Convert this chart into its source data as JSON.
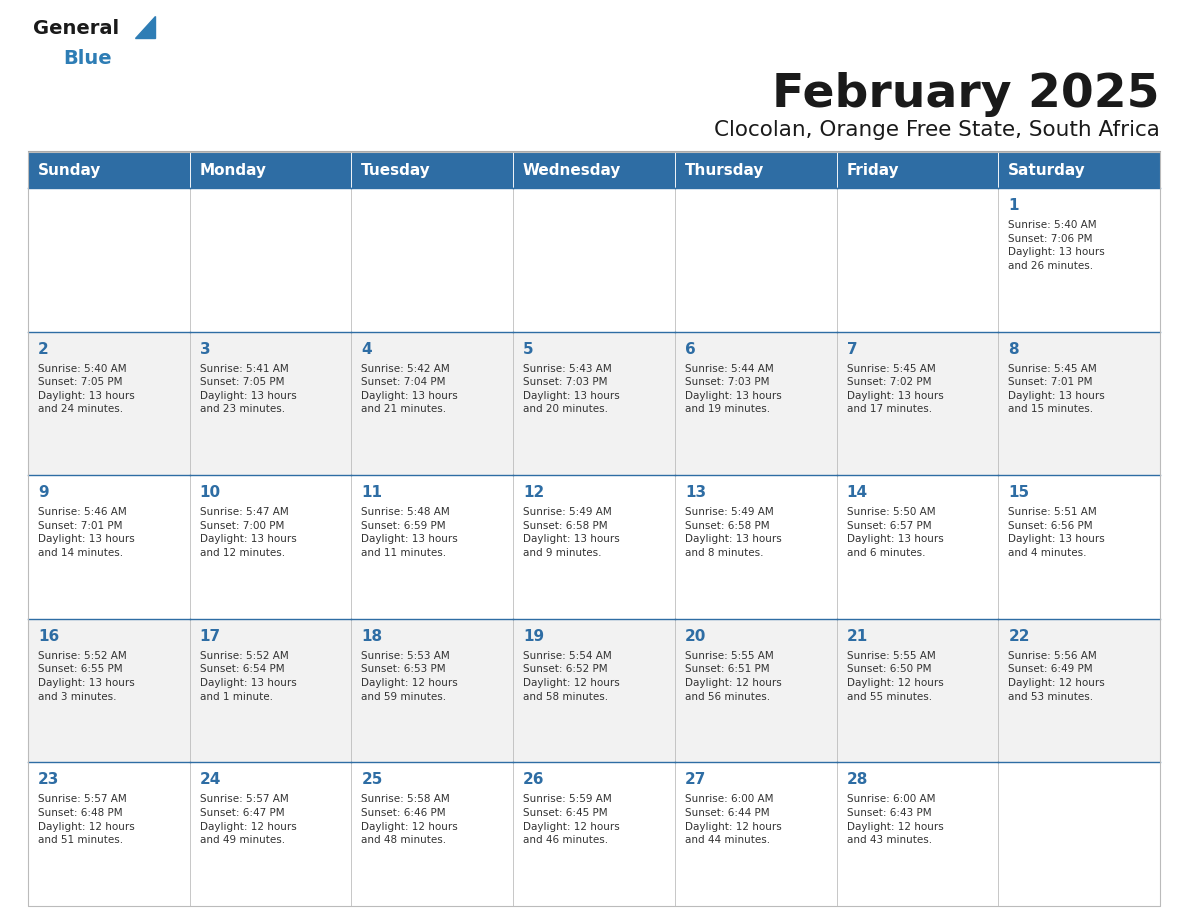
{
  "title": "February 2025",
  "subtitle": "Clocolan, Orange Free State, South Africa",
  "days_of_week": [
    "Sunday",
    "Monday",
    "Tuesday",
    "Wednesday",
    "Thursday",
    "Friday",
    "Saturday"
  ],
  "header_bg": "#2E6DA4",
  "header_text": "#FFFFFF",
  "cell_bg_white": "#FFFFFF",
  "cell_bg_gray": "#F2F2F2",
  "cell_border": "#BBBBBB",
  "day_num_color": "#2E6DA4",
  "info_text_color": "#333333",
  "title_color": "#1A1A1A",
  "subtitle_color": "#1A1A1A",
  "logo_general_color": "#1A1A1A",
  "logo_blue_color": "#2E7DB5",
  "divider_color": "#2E6DA4",
  "weeks": [
    [
      {
        "day": null,
        "info": ""
      },
      {
        "day": null,
        "info": ""
      },
      {
        "day": null,
        "info": ""
      },
      {
        "day": null,
        "info": ""
      },
      {
        "day": null,
        "info": ""
      },
      {
        "day": null,
        "info": ""
      },
      {
        "day": 1,
        "info": "Sunrise: 5:40 AM\nSunset: 7:06 PM\nDaylight: 13 hours\nand 26 minutes."
      }
    ],
    [
      {
        "day": 2,
        "info": "Sunrise: 5:40 AM\nSunset: 7:05 PM\nDaylight: 13 hours\nand 24 minutes."
      },
      {
        "day": 3,
        "info": "Sunrise: 5:41 AM\nSunset: 7:05 PM\nDaylight: 13 hours\nand 23 minutes."
      },
      {
        "day": 4,
        "info": "Sunrise: 5:42 AM\nSunset: 7:04 PM\nDaylight: 13 hours\nand 21 minutes."
      },
      {
        "day": 5,
        "info": "Sunrise: 5:43 AM\nSunset: 7:03 PM\nDaylight: 13 hours\nand 20 minutes."
      },
      {
        "day": 6,
        "info": "Sunrise: 5:44 AM\nSunset: 7:03 PM\nDaylight: 13 hours\nand 19 minutes."
      },
      {
        "day": 7,
        "info": "Sunrise: 5:45 AM\nSunset: 7:02 PM\nDaylight: 13 hours\nand 17 minutes."
      },
      {
        "day": 8,
        "info": "Sunrise: 5:45 AM\nSunset: 7:01 PM\nDaylight: 13 hours\nand 15 minutes."
      }
    ],
    [
      {
        "day": 9,
        "info": "Sunrise: 5:46 AM\nSunset: 7:01 PM\nDaylight: 13 hours\nand 14 minutes."
      },
      {
        "day": 10,
        "info": "Sunrise: 5:47 AM\nSunset: 7:00 PM\nDaylight: 13 hours\nand 12 minutes."
      },
      {
        "day": 11,
        "info": "Sunrise: 5:48 AM\nSunset: 6:59 PM\nDaylight: 13 hours\nand 11 minutes."
      },
      {
        "day": 12,
        "info": "Sunrise: 5:49 AM\nSunset: 6:58 PM\nDaylight: 13 hours\nand 9 minutes."
      },
      {
        "day": 13,
        "info": "Sunrise: 5:49 AM\nSunset: 6:58 PM\nDaylight: 13 hours\nand 8 minutes."
      },
      {
        "day": 14,
        "info": "Sunrise: 5:50 AM\nSunset: 6:57 PM\nDaylight: 13 hours\nand 6 minutes."
      },
      {
        "day": 15,
        "info": "Sunrise: 5:51 AM\nSunset: 6:56 PM\nDaylight: 13 hours\nand 4 minutes."
      }
    ],
    [
      {
        "day": 16,
        "info": "Sunrise: 5:52 AM\nSunset: 6:55 PM\nDaylight: 13 hours\nand 3 minutes."
      },
      {
        "day": 17,
        "info": "Sunrise: 5:52 AM\nSunset: 6:54 PM\nDaylight: 13 hours\nand 1 minute."
      },
      {
        "day": 18,
        "info": "Sunrise: 5:53 AM\nSunset: 6:53 PM\nDaylight: 12 hours\nand 59 minutes."
      },
      {
        "day": 19,
        "info": "Sunrise: 5:54 AM\nSunset: 6:52 PM\nDaylight: 12 hours\nand 58 minutes."
      },
      {
        "day": 20,
        "info": "Sunrise: 5:55 AM\nSunset: 6:51 PM\nDaylight: 12 hours\nand 56 minutes."
      },
      {
        "day": 21,
        "info": "Sunrise: 5:55 AM\nSunset: 6:50 PM\nDaylight: 12 hours\nand 55 minutes."
      },
      {
        "day": 22,
        "info": "Sunrise: 5:56 AM\nSunset: 6:49 PM\nDaylight: 12 hours\nand 53 minutes."
      }
    ],
    [
      {
        "day": 23,
        "info": "Sunrise: 5:57 AM\nSunset: 6:48 PM\nDaylight: 12 hours\nand 51 minutes."
      },
      {
        "day": 24,
        "info": "Sunrise: 5:57 AM\nSunset: 6:47 PM\nDaylight: 12 hours\nand 49 minutes."
      },
      {
        "day": 25,
        "info": "Sunrise: 5:58 AM\nSunset: 6:46 PM\nDaylight: 12 hours\nand 48 minutes."
      },
      {
        "day": 26,
        "info": "Sunrise: 5:59 AM\nSunset: 6:45 PM\nDaylight: 12 hours\nand 46 minutes."
      },
      {
        "day": 27,
        "info": "Sunrise: 6:00 AM\nSunset: 6:44 PM\nDaylight: 12 hours\nand 44 minutes."
      },
      {
        "day": 28,
        "info": "Sunrise: 6:00 AM\nSunset: 6:43 PM\nDaylight: 12 hours\nand 43 minutes."
      },
      {
        "day": null,
        "info": ""
      }
    ]
  ]
}
